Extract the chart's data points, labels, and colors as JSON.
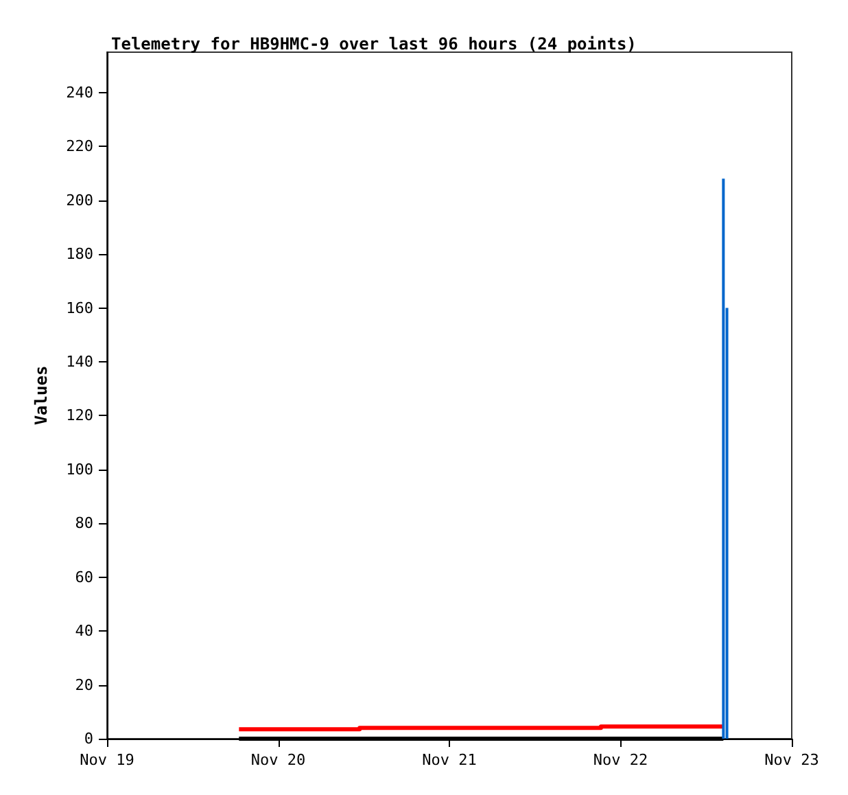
{
  "chart_data": {
    "type": "step",
    "title": "Telemetry for HB9HMC-9 over last 96 hours (24 points)",
    "ylabel": "Values",
    "xlim": [
      "--11-19",
      "--11-23"
    ],
    "xticks": [
      {
        "value": "--11-19",
        "label": "Nov 19"
      },
      {
        "value": "--11-20",
        "label": "Nov 20"
      },
      {
        "value": "--11-21",
        "label": "Nov 21"
      },
      {
        "value": "--11-22",
        "label": "Nov 22"
      },
      {
        "value": "--11-23",
        "label": "Nov 23"
      }
    ],
    "ylim": [
      0,
      255
    ],
    "yticks": [
      0,
      20,
      40,
      60,
      80,
      100,
      120,
      140,
      160,
      180,
      200,
      220,
      240
    ],
    "grid": false,
    "series": [
      {
        "color": "#000000",
        "x": [
          "--11-19T18:30",
          "--11-22T14:25"
        ],
        "values": [
          0,
          0
        ]
      },
      {
        "color": "#ff0000",
        "x": [
          "--11-19T18:30",
          "--11-20T11:25",
          "--11-21T21:15",
          "--11-22T14:25"
        ],
        "values": [
          3.5,
          4,
          4.5,
          4.5
        ]
      },
      {
        "type": "bar",
        "color": "#0066cc",
        "x": [
          "--11-22T14:25",
          "--11-22T14:55"
        ],
        "values": [
          208,
          160
        ]
      }
    ]
  }
}
